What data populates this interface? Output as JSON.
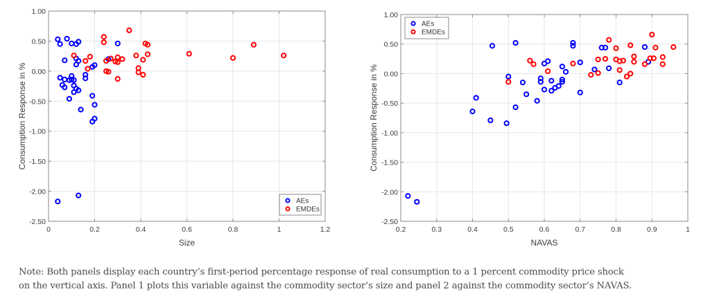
{
  "chart_data": [
    {
      "type": "scatter",
      "panel": "left",
      "title": "",
      "xlabel": "Size",
      "ylabel": "Consumption Response in %",
      "xlim": [
        0,
        1.2
      ],
      "ylim": [
        -2.5,
        1.0
      ],
      "xticks": [
        0,
        0.2,
        0.4,
        0.6,
        0.8,
        1.0,
        1.2
      ],
      "xtick_labels": [
        "0",
        "0.2",
        "0.4",
        "0.6",
        "0.8",
        "1",
        "1.2"
      ],
      "yticks": [
        1.0,
        0.5,
        0.0,
        -0.5,
        -1.0,
        -1.5,
        -2.0,
        -2.5
      ],
      "ytick_labels": [
        "1.00",
        "0.50",
        "0.00",
        "-0.50",
        "-1.00",
        "-1.50",
        "-2.00",
        "-2.50"
      ],
      "grid": true,
      "legend": "bottom-right",
      "series": [
        {
          "name": "AEs",
          "color": "#0000ff",
          "points": [
            [
              0.04,
              0.53
            ],
            [
              0.05,
              0.45
            ],
            [
              0.08,
              0.54
            ],
            [
              0.1,
              0.46
            ],
            [
              0.13,
              0.49
            ],
            [
              0.12,
              0.45
            ],
            [
              0.07,
              0.18
            ],
            [
              0.12,
              0.21
            ],
            [
              0.13,
              0.17
            ],
            [
              0.12,
              0.11
            ],
            [
              0.19,
              0.07
            ],
            [
              0.2,
              0.1
            ],
            [
              0.16,
              -0.06
            ],
            [
              0.16,
              -0.12
            ],
            [
              0.05,
              -0.11
            ],
            [
              0.07,
              -0.14
            ],
            [
              0.09,
              -0.15
            ],
            [
              0.1,
              -0.08
            ],
            [
              0.1,
              -0.14
            ],
            [
              0.11,
              -0.15
            ],
            [
              0.06,
              -0.23
            ],
            [
              0.07,
              -0.27
            ],
            [
              0.11,
              -0.24
            ],
            [
              0.12,
              -0.29
            ],
            [
              0.13,
              -0.32
            ],
            [
              0.11,
              -0.35
            ],
            [
              0.09,
              -0.46
            ],
            [
              0.19,
              -0.41
            ],
            [
              0.2,
              -0.56
            ],
            [
              0.14,
              -0.64
            ],
            [
              0.2,
              -0.79
            ],
            [
              0.19,
              -0.84
            ],
            [
              0.3,
              0.46
            ],
            [
              0.26,
              0.2
            ],
            [
              0.13,
              -2.07
            ],
            [
              0.04,
              -2.17
            ]
          ]
        },
        {
          "name": "EMDEs",
          "color": "#ff0000",
          "points": [
            [
              0.11,
              0.26
            ],
            [
              0.16,
              0.17
            ],
            [
              0.18,
              0.24
            ],
            [
              0.17,
              0.04
            ],
            [
              0.24,
              0.57
            ],
            [
              0.24,
              0.48
            ],
            [
              0.35,
              0.68
            ],
            [
              0.42,
              0.46
            ],
            [
              0.43,
              0.44
            ],
            [
              0.43,
              0.28
            ],
            [
              0.38,
              0.26
            ],
            [
              0.41,
              0.19
            ],
            [
              0.27,
              0.21
            ],
            [
              0.25,
              0.17
            ],
            [
              0.3,
              0.23
            ],
            [
              0.32,
              0.2
            ],
            [
              0.29,
              0.16
            ],
            [
              0.3,
              0.15
            ],
            [
              0.39,
              0.05
            ],
            [
              0.39,
              -0.02
            ],
            [
              0.41,
              -0.06
            ],
            [
              0.25,
              0.0
            ],
            [
              0.26,
              -0.01
            ],
            [
              0.3,
              -0.13
            ],
            [
              0.61,
              0.29
            ],
            [
              0.8,
              0.22
            ],
            [
              0.89,
              0.44
            ],
            [
              1.02,
              0.26
            ]
          ]
        }
      ]
    },
    {
      "type": "scatter",
      "panel": "right",
      "title": "",
      "xlabel": "NAVAS",
      "ylabel": "Consumption Response in %",
      "xlim": [
        0.2,
        1.0
      ],
      "ylim": [
        -2.5,
        1.0
      ],
      "xticks": [
        0.2,
        0.3,
        0.4,
        0.5,
        0.6,
        0.7,
        0.8,
        0.9,
        1.0
      ],
      "xtick_labels": [
        "0.2",
        "0.3",
        "0.4",
        "0.5",
        "0.6",
        "0.7",
        "0.8",
        "0.9",
        "1"
      ],
      "yticks": [
        1.0,
        0.5,
        0.0,
        -0.5,
        -1.0,
        -1.5,
        -2.0,
        -2.5
      ],
      "ytick_labels": [
        "1.00",
        "0.50",
        "0.00",
        "-0.50",
        "-1.00",
        "-1.50",
        "-2.00",
        "-2.50"
      ],
      "grid": true,
      "legend": "top-left",
      "series": [
        {
          "name": "AEs",
          "color": "#0000ff",
          "points": [
            [
              0.455,
              0.47
            ],
            [
              0.52,
              0.52
            ],
            [
              0.5,
              -0.05
            ],
            [
              0.54,
              -0.15
            ],
            [
              0.55,
              -0.35
            ],
            [
              0.41,
              -0.41
            ],
            [
              0.52,
              -0.57
            ],
            [
              0.4,
              -0.64
            ],
            [
              0.45,
              -0.79
            ],
            [
              0.495,
              -0.84
            ],
            [
              0.58,
              -0.46
            ],
            [
              0.61,
              0.21
            ],
            [
              0.6,
              0.17
            ],
            [
              0.65,
              0.12
            ],
            [
              0.66,
              0.03
            ],
            [
              0.7,
              0.19
            ],
            [
              0.68,
              0.52
            ],
            [
              0.68,
              0.47
            ],
            [
              0.59,
              -0.08
            ],
            [
              0.59,
              -0.14
            ],
            [
              0.62,
              -0.12
            ],
            [
              0.65,
              -0.1
            ],
            [
              0.65,
              -0.14
            ],
            [
              0.6,
              -0.27
            ],
            [
              0.62,
              -0.29
            ],
            [
              0.63,
              -0.24
            ],
            [
              0.64,
              -0.21
            ],
            [
              0.7,
              -0.32
            ],
            [
              0.76,
              0.44
            ],
            [
              0.77,
              0.44
            ],
            [
              0.88,
              0.45
            ],
            [
              0.74,
              0.07
            ],
            [
              0.78,
              0.09
            ],
            [
              0.89,
              0.2
            ],
            [
              0.81,
              -0.15
            ],
            [
              0.22,
              -2.07
            ],
            [
              0.245,
              -2.17
            ]
          ]
        },
        {
          "name": "EMDEs",
          "color": "#ff0000",
          "points": [
            [
              0.5,
              -0.14
            ],
            [
              0.56,
              0.22
            ],
            [
              0.57,
              0.16
            ],
            [
              0.61,
              0.04
            ],
            [
              0.68,
              0.17
            ],
            [
              0.78,
              0.57
            ],
            [
              0.8,
              0.43
            ],
            [
              0.84,
              0.48
            ],
            [
              0.9,
              0.66
            ],
            [
              0.91,
              0.44
            ],
            [
              0.96,
              0.45
            ],
            [
              0.75,
              0.24
            ],
            [
              0.77,
              0.25
            ],
            [
              0.8,
              0.24
            ],
            [
              0.81,
              0.21
            ],
            [
              0.82,
              0.22
            ],
            [
              0.85,
              0.29
            ],
            [
              0.85,
              0.2
            ],
            [
              0.895,
              0.26
            ],
            [
              0.905,
              0.26
            ],
            [
              0.88,
              0.16
            ],
            [
              0.93,
              0.28
            ],
            [
              0.93,
              0.16
            ],
            [
              0.73,
              -0.02
            ],
            [
              0.75,
              0.01
            ],
            [
              0.81,
              0.06
            ],
            [
              0.84,
              0.0
            ],
            [
              0.83,
              -0.05
            ]
          ]
        }
      ]
    }
  ],
  "note": {
    "line1": "Note: Both panels display each country’s first-period percentage response of real consumption to a 1 percent commodity price shock",
    "line2": "on the vertical axis. Panel 1 plots this variable against the commodity sector’s size and panel 2 against the commodity sector’s NAVAS."
  }
}
